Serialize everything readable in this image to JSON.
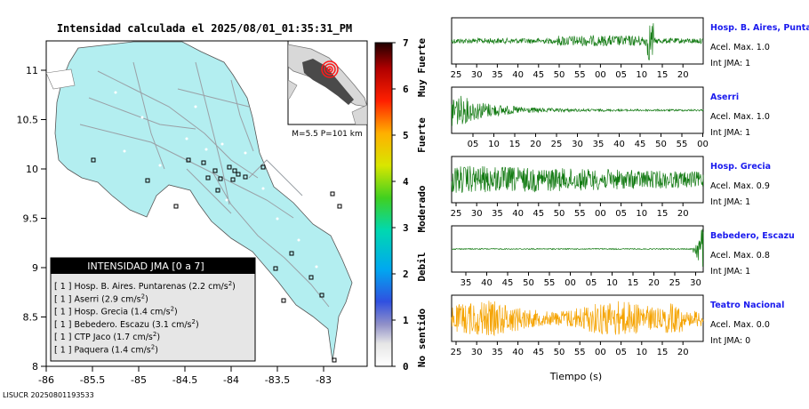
{
  "map": {
    "title": "Intensidad calculada el 2025/08/01_01:35:31_PM",
    "x_ticks": [
      "-86",
      "-85.5",
      "-85",
      "-84.5",
      "-84",
      "-83.5",
      "-83"
    ],
    "y_ticks": [
      "11",
      "10.5",
      "10",
      "9.5",
      "9",
      "8.5",
      "8"
    ],
    "land_color": "#b3eef0",
    "inset_label": "M=5.5 P=101 km",
    "legend": {
      "title": "INTENSIDAD JMA [0 a 7]",
      "rows": [
        {
          "level": "[ 1 ]",
          "text": "Hosp. B. Aires. Puntarenas (2.2 cm/s",
          "sup": "2",
          "close": ")"
        },
        {
          "level": "[ 1 ]",
          "text": "Aserri (2.9 cm/s",
          "sup": "2",
          "close": ")"
        },
        {
          "level": "[ 1 ]",
          "text": "Hosp. Grecia (1.4 cm/s",
          "sup": "2",
          "close": ")"
        },
        {
          "level": "[ 1 ]",
          "text": "Bebedero. Escazu (3.1 cm/s",
          "sup": "2",
          "close": ")"
        },
        {
          "level": "[ 1 ]",
          "text": "CTP Jaco (1.7 cm/s",
          "sup": "2",
          "close": ")"
        },
        {
          "level": "[ 1 ]",
          "text": "Paquera (1.4 cm/s",
          "sup": "2",
          "close": ")"
        }
      ]
    },
    "footer_id": "LISUCR 20250801193533"
  },
  "colorbar": {
    "ticks": [
      "7",
      "6",
      "5",
      "4",
      "3",
      "2",
      "1",
      "0"
    ],
    "labels": [
      "Muy Fuerte",
      "Fuerte",
      "Moderado",
      "Debil",
      "No sentido"
    ]
  },
  "traces": [
    {
      "name": "Hosp. B. Aires, Puntare",
      "acel": "Acel. Max. 1.0",
      "int": "Int JMA: 1",
      "color": "#127a12",
      "ticks": [
        "25",
        "30",
        "35",
        "40",
        "45",
        "50",
        "55",
        "00",
        "05",
        "10",
        "15",
        "20"
      ]
    },
    {
      "name": "Aserri",
      "acel": "Acel. Max. 1.0",
      "int": "Int JMA: 1",
      "color": "#127a12",
      "ticks": [
        "05",
        "10",
        "15",
        "20",
        "25",
        "30",
        "35",
        "40",
        "45",
        "50",
        "55",
        "00"
      ]
    },
    {
      "name": "Hosp. Grecia",
      "acel": "Acel. Max. 0.9",
      "int": "Int JMA: 1",
      "color": "#127a12",
      "ticks": [
        "25",
        "30",
        "35",
        "40",
        "45",
        "50",
        "55",
        "00",
        "05",
        "10",
        "15",
        "20"
      ]
    },
    {
      "name": "Bebedero, Escazu",
      "acel": "Acel. Max. 0.8",
      "int": "Int JMA: 1",
      "color": "#127a12",
      "ticks": [
        "35",
        "40",
        "45",
        "50",
        "55",
        "00",
        "05",
        "10",
        "15",
        "20",
        "25",
        "30"
      ]
    },
    {
      "name": "Teatro Nacional",
      "acel": "Acel. Max. 0.0",
      "int": "Int JMA: 0",
      "color": "#f5a300",
      "ticks": [
        "25",
        "30",
        "35",
        "40",
        "45",
        "50",
        "55",
        "00",
        "05",
        "10",
        "15",
        "20"
      ]
    }
  ],
  "xaxis_label": "Tiempo (s)"
}
